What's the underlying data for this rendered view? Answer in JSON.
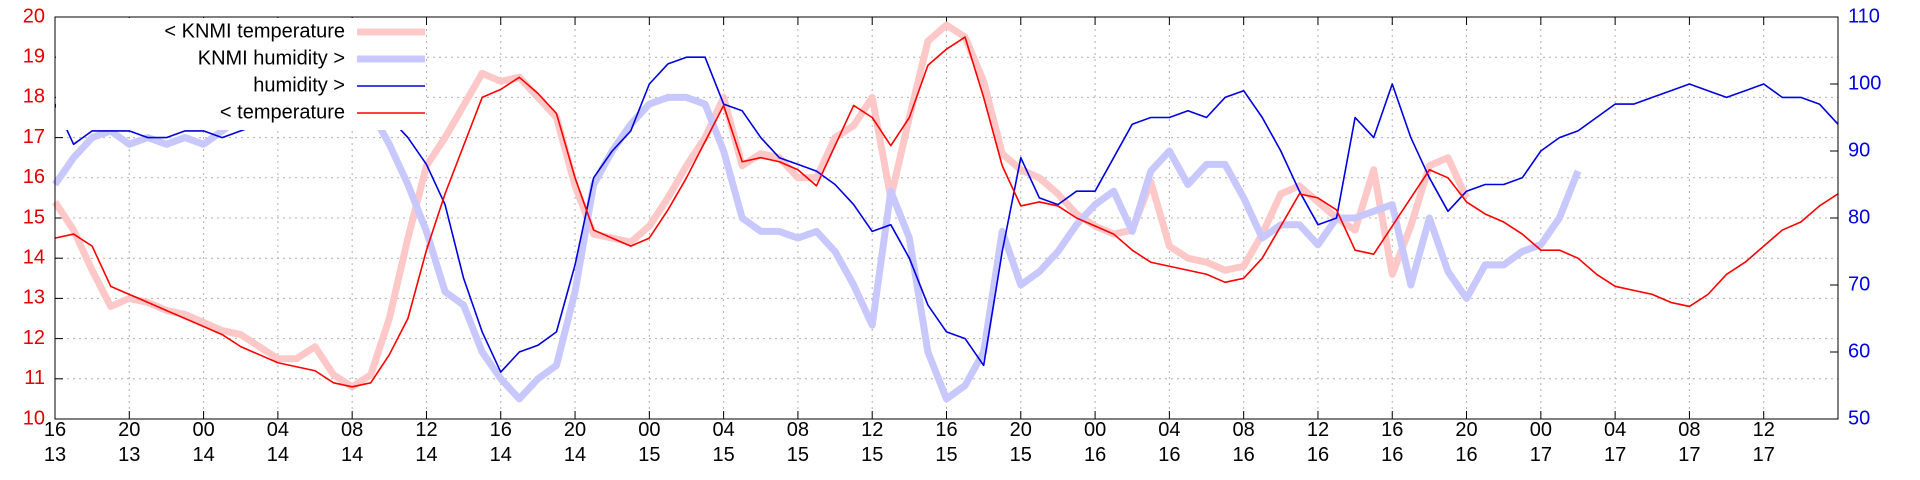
{
  "chart_data": {
    "type": "line",
    "legend": "upper left",
    "grid": true,
    "ytick_color": "#e00000",
    "y2tick_color": "#0000e0",
    "x": [
      0,
      1,
      2,
      3,
      4,
      5,
      6,
      7,
      8,
      9,
      10,
      11,
      12,
      13,
      14,
      15,
      16,
      17,
      18,
      19,
      20,
      21,
      22,
      23,
      24,
      25,
      26,
      27,
      28,
      29,
      30,
      31,
      32,
      33,
      34,
      35,
      36,
      37,
      38,
      39,
      40,
      41,
      42,
      43,
      44,
      45,
      46,
      47,
      48,
      49,
      50,
      51,
      52,
      53,
      54,
      55,
      56,
      57,
      58,
      59,
      60,
      61,
      62,
      63,
      64,
      65,
      66,
      67,
      68,
      69,
      70,
      71,
      72,
      73,
      74,
      75,
      76,
      77,
      78,
      79,
      80,
      81,
      82,
      83,
      84,
      85,
      86,
      87,
      88,
      89,
      90,
      91,
      92,
      93,
      94,
      95,
      96
    ],
    "xlim": [
      0,
      96
    ],
    "xticks": [
      {
        "value": 0,
        "label": "16\n13"
      },
      {
        "value": 4,
        "label": "20\n13"
      },
      {
        "value": 8,
        "label": "00\n14"
      },
      {
        "value": 12,
        "label": "04\n14"
      },
      {
        "value": 16,
        "label": "08\n14"
      },
      {
        "value": 20,
        "label": "12\n14"
      },
      {
        "value": 24,
        "label": "16\n14"
      },
      {
        "value": 28,
        "label": "20\n14"
      },
      {
        "value": 32,
        "label": "00\n15"
      },
      {
        "value": 36,
        "label": "04\n15"
      },
      {
        "value": 40,
        "label": "08\n15"
      },
      {
        "value": 44,
        "label": "12\n15"
      },
      {
        "value": 48,
        "label": "16\n15"
      },
      {
        "value": 52,
        "label": "20\n15"
      },
      {
        "value": 56,
        "label": "00\n16"
      },
      {
        "value": 60,
        "label": "04\n16"
      },
      {
        "value": 64,
        "label": "08\n16"
      },
      {
        "value": 68,
        "label": "12\n16"
      },
      {
        "value": 72,
        "label": "16\n16"
      },
      {
        "value": 76,
        "label": "20\n16"
      },
      {
        "value": 80,
        "label": "00\n17"
      },
      {
        "value": 84,
        "label": "04\n17"
      },
      {
        "value": 88,
        "label": "08\n17"
      },
      {
        "value": 92,
        "label": "12\n17"
      }
    ],
    "ylim": [
      10,
      20
    ],
    "yticks": [
      10,
      11,
      12,
      13,
      14,
      15,
      16,
      17,
      18,
      19,
      20
    ],
    "y2lim": [
      50,
      110
    ],
    "y2ticks": [
      50,
      60,
      70,
      80,
      90,
      100,
      110
    ],
    "series": [
      {
        "name": "< KNMI temperature",
        "color": "#ffc8c8",
        "width": 7,
        "axis": "y",
        "values": [
          15.4,
          14.7,
          13.7,
          12.8,
          13.0,
          12.9,
          12.7,
          12.6,
          12.4,
          12.2,
          12.1,
          11.8,
          11.5,
          11.5,
          11.8,
          11.1,
          10.8,
          11.1,
          12.5,
          14.5,
          16.3,
          17.0,
          17.8,
          18.6,
          18.4,
          18.5,
          18.0,
          17.5,
          15.8,
          14.6,
          14.5,
          14.4,
          14.8,
          15.5,
          16.3,
          17.0,
          18.0,
          16.3,
          16.6,
          16.5,
          16.0,
          16.0,
          17.0,
          17.3,
          18.0,
          15.5,
          17.5,
          19.4,
          19.8,
          19.5,
          18.4,
          16.6,
          16.2,
          16.0,
          15.6,
          15.1,
          14.8,
          14.6,
          14.7,
          15.9,
          14.3,
          14.0,
          13.9,
          13.7,
          13.8,
          14.6,
          15.6,
          15.8,
          15.4,
          15.0,
          14.7,
          16.2,
          13.6,
          14.8,
          16.3,
          16.5,
          15.5,
          null,
          null,
          null,
          null,
          null,
          null,
          null,
          null,
          null,
          null,
          null,
          null,
          null,
          null,
          null,
          null,
          null,
          null,
          null,
          null
        ]
      },
      {
        "name": "KNMI humidity >",
        "color": "#c8c8ff",
        "width": 7,
        "axis": "y2",
        "values": [
          85,
          89,
          92,
          93,
          91,
          92,
          91,
          92,
          91,
          93,
          95,
          97,
          98,
          98,
          98,
          97,
          97,
          96,
          91,
          85,
          78,
          69,
          67,
          60,
          56,
          53,
          56,
          58,
          69,
          85,
          90,
          94,
          97,
          98,
          98,
          97,
          90,
          80,
          78,
          78,
          77,
          78,
          75,
          70,
          64,
          84,
          77,
          60,
          53,
          55,
          60,
          78,
          70,
          72,
          75,
          79,
          82,
          84,
          78,
          87,
          90,
          85,
          88,
          88,
          83,
          77,
          79,
          79,
          76,
          80,
          80,
          81,
          82,
          70,
          80,
          72,
          68,
          73,
          73,
          75,
          76,
          80,
          87,
          null,
          null,
          null,
          null,
          null,
          null,
          null,
          null,
          null,
          null,
          null,
          null,
          null,
          null
        ]
      },
      {
        "name": "humidity >",
        "color": "#0000e0",
        "width": 1.6,
        "axis": "y2",
        "values": [
          97,
          91,
          93,
          93,
          93,
          92,
          92,
          93,
          93,
          92,
          93,
          94,
          94,
          95,
          95,
          95,
          96,
          96,
          95,
          92,
          88,
          82,
          71,
          63,
          57,
          60,
          61,
          63,
          73,
          86,
          90,
          93,
          100,
          103,
          104,
          104,
          97,
          96,
          92,
          89,
          88,
          87,
          85,
          82,
          78,
          79,
          74,
          67,
          63,
          62,
          58,
          75,
          89,
          83,
          82,
          84,
          84,
          89,
          94,
          95,
          95,
          96,
          95,
          98,
          99,
          95,
          90,
          84,
          79,
          80,
          95,
          92,
          100,
          92,
          86,
          81,
          84,
          85,
          85,
          86,
          90,
          92,
          93,
          95,
          97,
          97,
          98,
          99,
          100,
          99,
          98,
          99,
          100,
          98,
          98,
          97,
          94
        ]
      },
      {
        "name": "< temperature",
        "color": "#ff0000",
        "width": 1.6,
        "axis": "y",
        "values": [
          14.5,
          14.6,
          14.3,
          13.3,
          13.1,
          12.9,
          12.7,
          12.5,
          12.3,
          12.1,
          11.8,
          11.6,
          11.4,
          11.3,
          11.2,
          10.9,
          10.8,
          10.9,
          11.6,
          12.5,
          14.2,
          15.6,
          16.8,
          18.0,
          18.2,
          18.5,
          18.1,
          17.6,
          16.0,
          14.7,
          14.5,
          14.3,
          14.5,
          15.2,
          16.0,
          16.9,
          17.8,
          16.4,
          16.5,
          16.4,
          16.2,
          15.8,
          16.8,
          17.8,
          17.5,
          16.8,
          17.5,
          18.8,
          19.2,
          19.5,
          18.0,
          16.3,
          15.3,
          15.4,
          15.3,
          15.0,
          14.8,
          14.6,
          14.2,
          13.9,
          13.8,
          13.7,
          13.6,
          13.4,
          13.5,
          14.0,
          14.8,
          15.6,
          15.5,
          15.2,
          14.2,
          14.1,
          14.8,
          15.5,
          16.2,
          16.0,
          15.4,
          15.1,
          14.9,
          14.6,
          14.2,
          14.2,
          14.0,
          13.6,
          13.3,
          13.2,
          13.1,
          12.9,
          12.8,
          13.1,
          13.6,
          13.9,
          14.3,
          14.7,
          14.9,
          15.3,
          15.6
        ]
      }
    ]
  }
}
